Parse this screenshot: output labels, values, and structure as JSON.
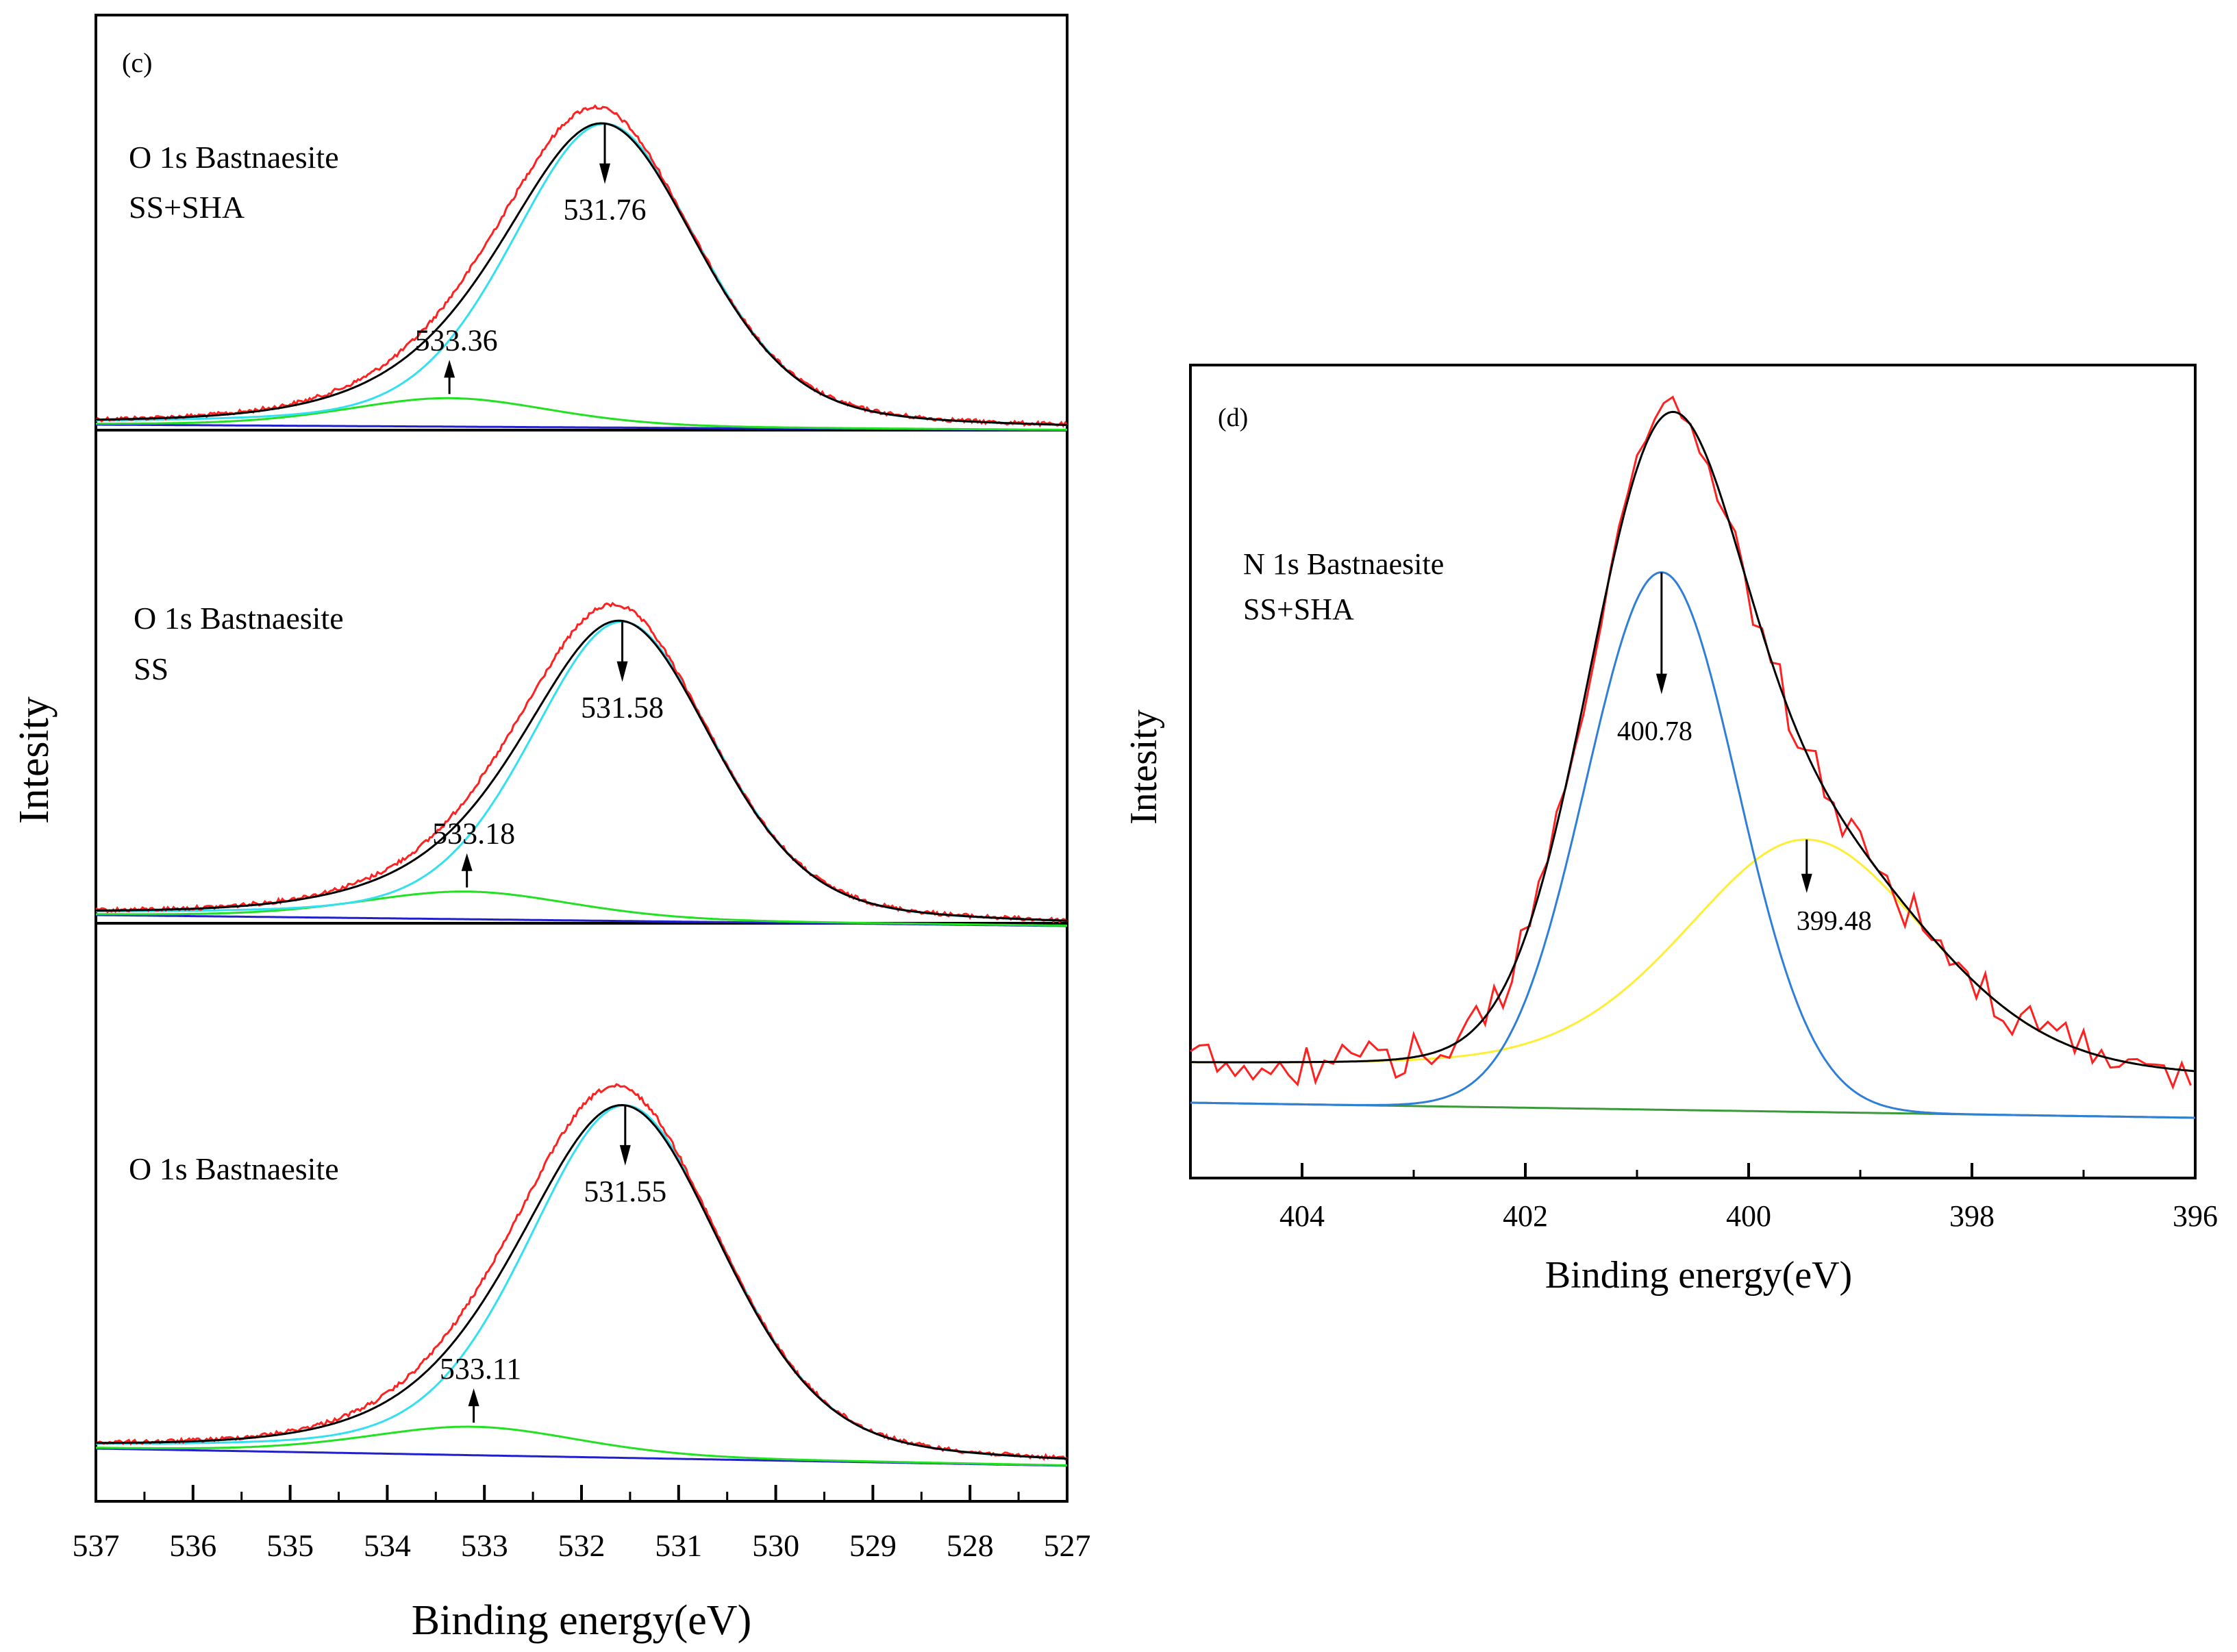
{
  "chart_data": [
    {
      "panel": "(c)",
      "type": "line",
      "xlabel": "Binding energy(eV)",
      "ylabel": "Intesity",
      "xlim": [
        537,
        527
      ],
      "xticks": [
        "537",
        "536",
        "535",
        "534",
        "533",
        "532",
        "531",
        "530",
        "529",
        "528",
        "527"
      ],
      "grid": false,
      "colors": {
        "raw": "#ff2020",
        "envelope": "#000000",
        "main_peak": "#33e0f0",
        "minor_peak": "#22e022",
        "background": "#2020cc"
      },
      "subplots": [
        {
          "label_lines": [
            "O 1s Bastnaesite",
            "SS+SHA"
          ],
          "peaks": [
            {
              "name": "main",
              "center": 531.76,
              "label": "531.76",
              "fwhm": 2.3,
              "height": 0.96
            },
            {
              "name": "minor",
              "center": 533.36,
              "label": "533.36",
              "fwhm": 2.5,
              "height": 0.09
            }
          ],
          "envelope_peak": 531.8,
          "envelope_height": 1.0
        },
        {
          "label_lines": [
            "O 1s Bastnaesite",
            "SS"
          ],
          "peaks": [
            {
              "name": "main",
              "center": 531.58,
              "label": "531.58",
              "fwhm": 2.25,
              "height": 0.92
            },
            {
              "name": "minor",
              "center": 533.18,
              "label": "533.18",
              "fwhm": 2.6,
              "height": 0.085
            }
          ],
          "envelope_peak": 531.6,
          "envelope_height": 0.96
        },
        {
          "label_lines": [
            "O 1s Bastnaesite"
          ],
          "peaks": [
            {
              "name": "main",
              "center": 531.55,
              "label": "531.55",
              "fwhm": 2.4,
              "height": 0.99
            },
            {
              "name": "minor",
              "center": 533.11,
              "label": "533.11",
              "fwhm": 2.6,
              "height": 0.08
            }
          ],
          "envelope_peak": 531.6,
          "envelope_height": 1.0
        }
      ]
    },
    {
      "panel": "(d)",
      "type": "line",
      "xlabel": "Binding energy(eV)",
      "ylabel": "Intesity",
      "xlim": [
        405,
        396
      ],
      "xticks": [
        "404",
        "402",
        "400",
        "398",
        "396"
      ],
      "grid": false,
      "label_lines": [
        "N 1s Bastnaesite",
        "SS+SHA"
      ],
      "colors": {
        "raw": "#ff2020",
        "envelope": "#000000",
        "peak_1": "#2f7fd8",
        "peak_2": "#ffee33",
        "background": "#3a9a3a"
      },
      "peaks": [
        {
          "name": "peak_1",
          "center": 400.78,
          "label": "400.78",
          "fwhm": 1.6,
          "height": 0.73
        },
        {
          "name": "peak_2",
          "center": 399.48,
          "label": "399.48",
          "fwhm": 2.6,
          "height": 0.32
        }
      ],
      "envelope_height": 0.89
    }
  ]
}
